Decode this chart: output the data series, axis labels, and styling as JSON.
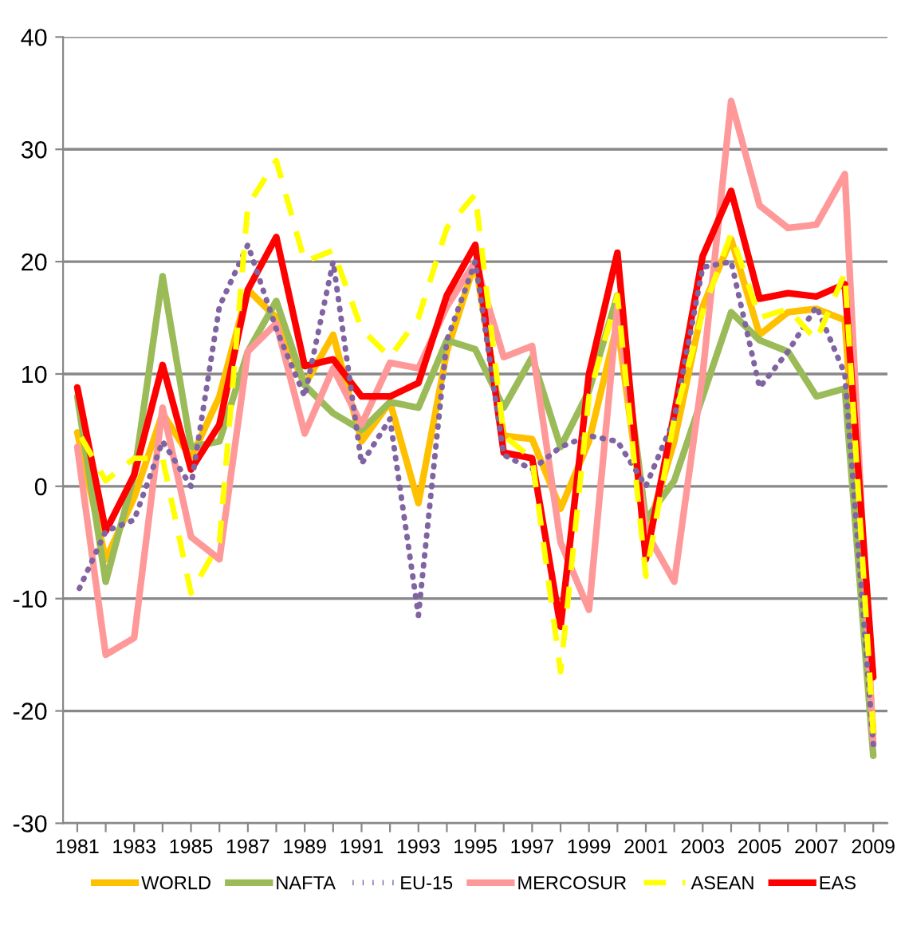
{
  "chart_data": {
    "type": "line",
    "categories": [
      "1981",
      null,
      "1983",
      null,
      "1985",
      null,
      "1987",
      null,
      "1989",
      null,
      "1991",
      null,
      "1993",
      null,
      "1995",
      null,
      "1997",
      null,
      "1999",
      null,
      "2001",
      null,
      "2003",
      null,
      "2005",
      null,
      "2007",
      null,
      "2009"
    ],
    "series": [
      {
        "name": "WORLD",
        "color": "#ffc000",
        "line_style": "solid",
        "values": [
          4.8,
          -6.5,
          -1,
          6.5,
          2.5,
          8,
          17.5,
          15,
          9,
          13.5,
          4,
          7.5,
          -1.5,
          12,
          20,
          4.5,
          4.2,
          -2,
          4,
          14.5,
          -4.5,
          4,
          16,
          22,
          13.5,
          15.5,
          15.8,
          14.8,
          -22
        ]
      },
      {
        "name": "NAFTA",
        "color": "#9bbb59",
        "line_style": "solid",
        "values": [
          8,
          -8.5,
          1,
          18.7,
          3.5,
          4,
          12,
          16.5,
          9,
          6.5,
          5,
          7.5,
          7,
          13,
          12.2,
          7,
          11.5,
          3.5,
          8.5,
          17,
          -3,
          0.5,
          8,
          15.5,
          13,
          12,
          8,
          8.7,
          -24
        ]
      },
      {
        "name": "EU-15",
        "color": "#8064a2",
        "line_style": "dotted",
        "values": [
          -9.5,
          -4,
          -3,
          4,
          0,
          16,
          21.5,
          14,
          8,
          20,
          2,
          6,
          -11.5,
          13,
          20,
          2.8,
          1.5,
          3.5,
          4.5,
          4,
          0,
          6,
          19.5,
          20,
          8.8,
          12,
          16,
          10,
          -23
        ]
      },
      {
        "name": "MERCOSUR",
        "color": "#ff9999",
        "line_style": "solid",
        "values": [
          3.5,
          -15,
          -13.5,
          7,
          -4.5,
          -6.5,
          12,
          14.5,
          4.7,
          10.5,
          5.5,
          11,
          10.5,
          16,
          20,
          11.5,
          12.5,
          -5,
          -11,
          16,
          -4,
          -8.5,
          10,
          34.3,
          25,
          23,
          23.3,
          27.8,
          -23
        ]
      },
      {
        "name": "ASEAN",
        "color": "#ffff00",
        "line_style": "dashed",
        "values": [
          5,
          0.5,
          2.5,
          2.5,
          -9.5,
          -5,
          25,
          29,
          20,
          21,
          14,
          11.5,
          15,
          23,
          26,
          4.5,
          2.5,
          -16.5,
          8,
          17,
          -8,
          6,
          15.5,
          22.5,
          15,
          15.8,
          13,
          19,
          -22
        ]
      },
      {
        "name": "EAS",
        "color": "#ff0000",
        "line_style": "solid",
        "values": [
          8.8,
          -4,
          1,
          10.8,
          1.5,
          5.5,
          17.5,
          22.2,
          10.7,
          11.3,
          8,
          8,
          9.2,
          17,
          21.5,
          3,
          2.5,
          -12.5,
          10,
          20.8,
          -6.5,
          6.5,
          20.5,
          26.3,
          16.7,
          17.2,
          16.9,
          18,
          -17
        ]
      }
    ],
    "ylim": [
      -30,
      40
    ],
    "yticks": [
      -30,
      -20,
      -10,
      0,
      10,
      20,
      30,
      40
    ],
    "grid": "y",
    "legend": "bottom"
  }
}
